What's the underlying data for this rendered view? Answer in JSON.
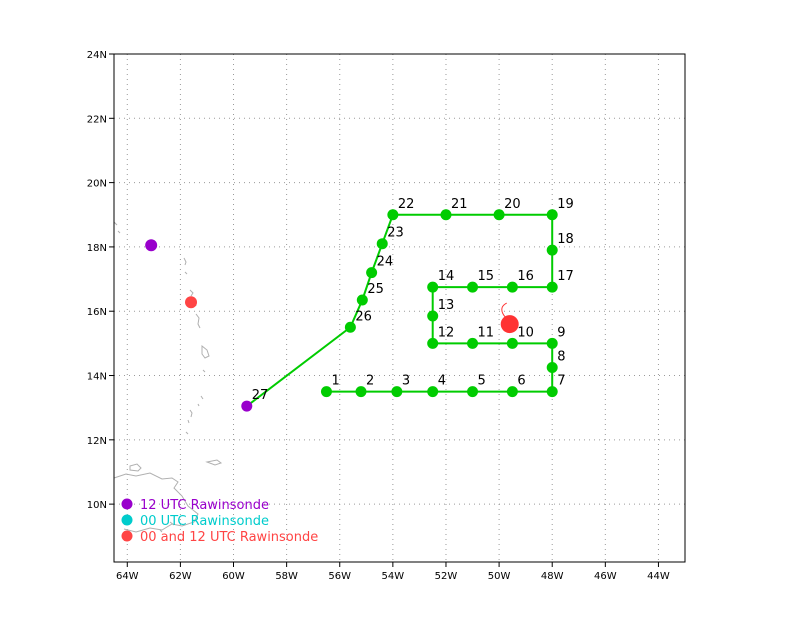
{
  "chart_data": {
    "type": "map",
    "xlim": [
      -64.5,
      -43
    ],
    "ylim": [
      8.2,
      24
    ],
    "x_ticks": [
      {
        "v": -64,
        "label": "64W"
      },
      {
        "v": -62,
        "label": "62W"
      },
      {
        "v": -60,
        "label": "60W"
      },
      {
        "v": -58,
        "label": "58W"
      },
      {
        "v": -56,
        "label": "56W"
      },
      {
        "v": -54,
        "label": "54W"
      },
      {
        "v": -52,
        "label": "52W"
      },
      {
        "v": -50,
        "label": "50W"
      },
      {
        "v": -48,
        "label": "48W"
      },
      {
        "v": -46,
        "label": "46W"
      },
      {
        "v": -44,
        "label": "44W"
      }
    ],
    "y_ticks": [
      {
        "v": 10,
        "label": "10N"
      },
      {
        "v": 12,
        "label": "12N"
      },
      {
        "v": 14,
        "label": "14N"
      },
      {
        "v": 16,
        "label": "16N"
      },
      {
        "v": 18,
        "label": "18N"
      },
      {
        "v": 20,
        "label": "20N"
      },
      {
        "v": 22,
        "label": "22N"
      },
      {
        "v": 24,
        "label": "24N"
      }
    ],
    "grid": true,
    "track_color": "#00cc00",
    "track": [
      {
        "id": "1",
        "lon": -56.5,
        "lat": 13.5
      },
      {
        "id": "2",
        "lon": -55.2,
        "lat": 13.5
      },
      {
        "id": "3",
        "lon": -53.85,
        "lat": 13.5
      },
      {
        "id": "4",
        "lon": -52.5,
        "lat": 13.5
      },
      {
        "id": "5",
        "lon": -51.0,
        "lat": 13.5
      },
      {
        "id": "6",
        "lon": -49.5,
        "lat": 13.5
      },
      {
        "id": "7",
        "lon": -48.0,
        "lat": 13.5
      },
      {
        "id": "8",
        "lon": -48.0,
        "lat": 14.25
      },
      {
        "id": "9",
        "lon": -48.0,
        "lat": 15.0
      },
      {
        "id": "10",
        "lon": -49.5,
        "lat": 15.0
      },
      {
        "id": "11",
        "lon": -51.0,
        "lat": 15.0
      },
      {
        "id": "12",
        "lon": -52.5,
        "lat": 15.0
      },
      {
        "id": "13",
        "lon": -52.5,
        "lat": 15.85
      },
      {
        "id": "14",
        "lon": -52.5,
        "lat": 16.75
      },
      {
        "id": "15",
        "lon": -51.0,
        "lat": 16.75
      },
      {
        "id": "16",
        "lon": -49.5,
        "lat": 16.75
      },
      {
        "id": "17",
        "lon": -48.0,
        "lat": 16.75
      },
      {
        "id": "18",
        "lon": -48.0,
        "lat": 17.9
      },
      {
        "id": "19",
        "lon": -48.0,
        "lat": 19.0
      },
      {
        "id": "20",
        "lon": -50.0,
        "lat": 19.0
      },
      {
        "id": "21",
        "lon": -52.0,
        "lat": 19.0
      },
      {
        "id": "22",
        "lon": -54.0,
        "lat": 19.0
      },
      {
        "id": "23",
        "lon": -54.4,
        "lat": 18.1
      },
      {
        "id": "24",
        "lon": -54.8,
        "lat": 17.2
      },
      {
        "id": "25",
        "lon": -55.15,
        "lat": 16.35
      },
      {
        "id": "26",
        "lon": -55.6,
        "lat": 15.5
      },
      {
        "id": "27",
        "lon": -59.5,
        "lat": 13.05
      }
    ],
    "endpoint_color": "#9900cc",
    "stations": [
      {
        "lon": -63.1,
        "lat": 18.05,
        "type": "12 UTC",
        "color": "#9900cc"
      },
      {
        "lon": -61.6,
        "lat": 16.28,
        "type": "00 and 12 UTC",
        "color": "#ff4444"
      }
    ],
    "storm_center": {
      "lon": -49.6,
      "lat": 15.6,
      "color": "#ff3333"
    },
    "legend": [
      {
        "label": "12 UTC Rawinsonde",
        "color": "#9900cc"
      },
      {
        "label": "00 UTC Rawinsonde",
        "color": "#00cccc"
      },
      {
        "label": "00 and 12 UTC Rawinsonde",
        "color": "#ff4444"
      }
    ],
    "legend_position": "bottom-left"
  }
}
